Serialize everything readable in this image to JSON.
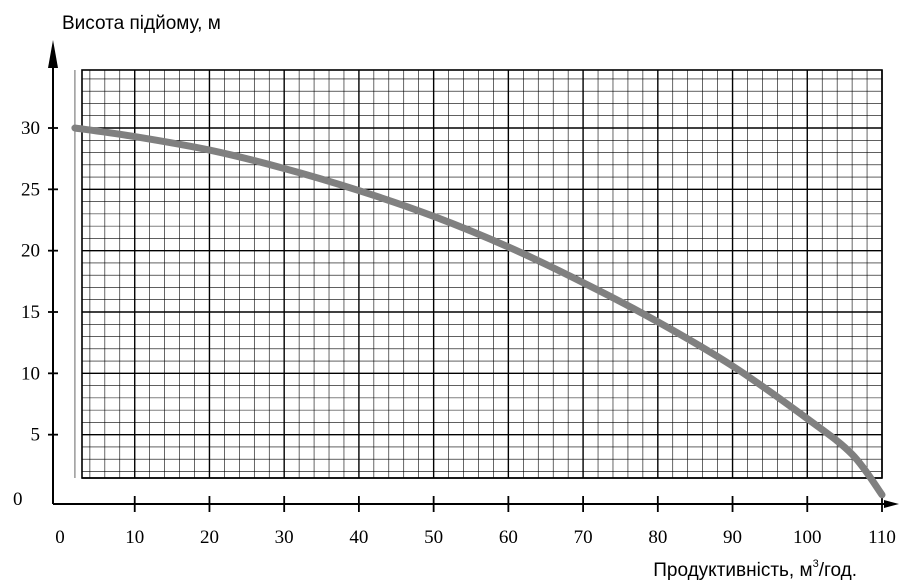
{
  "chart_data": {
    "type": "line",
    "title": "",
    "ylabel": "Висота підйому, м",
    "xlabel_parts": {
      "before": "Продуктивність, м",
      "sup": "3",
      "after": "/год."
    },
    "x_ticks": [
      0,
      10,
      20,
      30,
      40,
      50,
      60,
      70,
      80,
      90,
      100,
      110
    ],
    "y_ticks": [
      0,
      5,
      10,
      15,
      20,
      25,
      30
    ],
    "xlim": [
      0,
      110
    ],
    "ylim": [
      0,
      30
    ],
    "grid": true,
    "series": [
      {
        "x": [
          2,
          10,
          20,
          30,
          40,
          50,
          60,
          70,
          80,
          90,
          100,
          106,
          110
        ],
        "y": [
          30,
          29.3,
          28.2,
          26.7,
          24.9,
          22.8,
          20.3,
          17.4,
          14.2,
          10.6,
          6.3,
          3.4,
          0.1
        ]
      }
    ],
    "colors": {
      "curve": "#808080",
      "grid": "#000000",
      "axis": "#000000"
    }
  }
}
